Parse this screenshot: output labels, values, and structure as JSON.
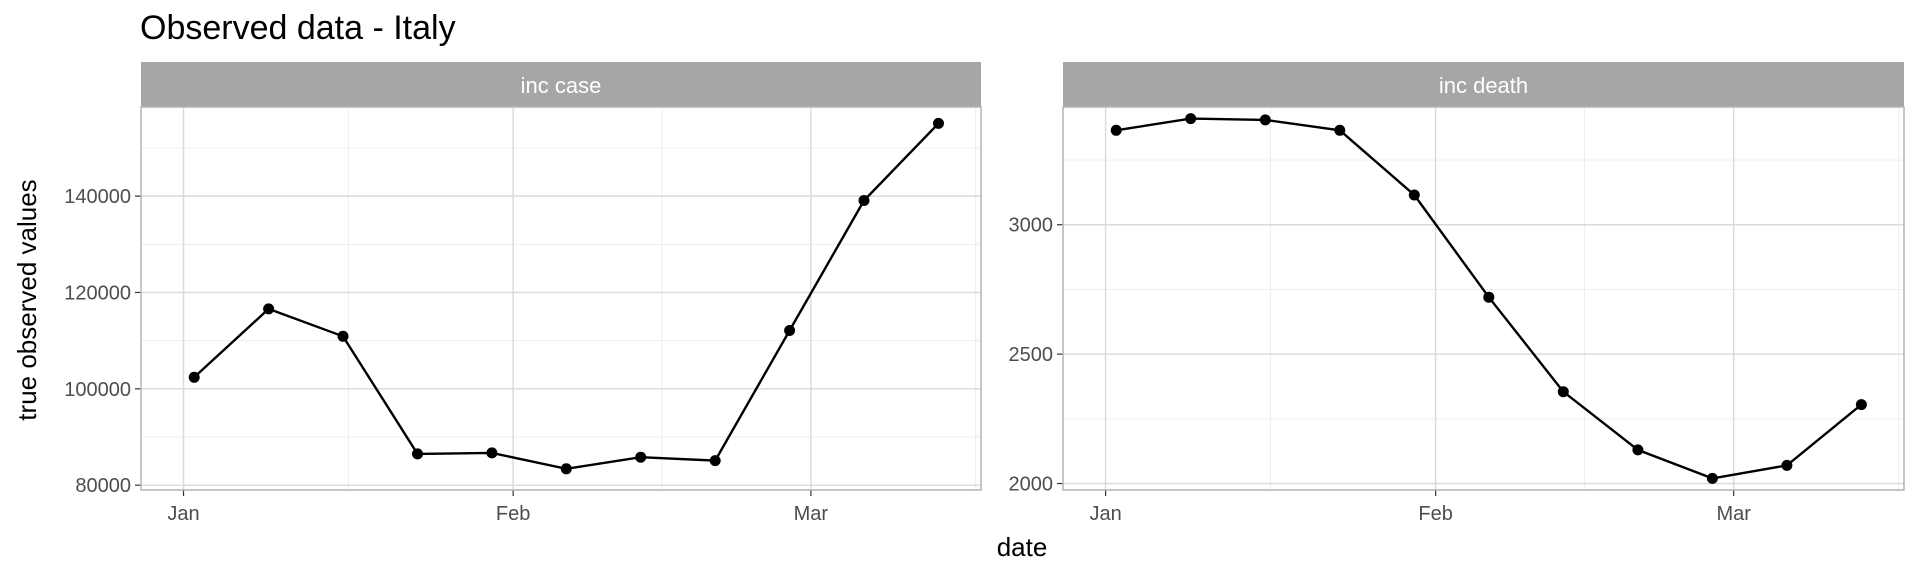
{
  "chart_data": {
    "type": "line",
    "title": "Observed data - Italy",
    "xlabel": "date",
    "ylabel": "true observed values",
    "grid": true,
    "x": [
      "2021-01-02",
      "2021-01-09",
      "2021-01-16",
      "2021-01-23",
      "2021-01-30",
      "2021-02-06",
      "2021-02-13",
      "2021-02-20",
      "2021-02-27",
      "2021-03-06",
      "2021-03-13"
    ],
    "xticks": [
      {
        "label": "Jan",
        "date": "2021-01-01"
      },
      {
        "label": "Feb",
        "date": "2021-02-01"
      },
      {
        "label": "Mar",
        "date": "2021-03-01"
      }
    ],
    "panels": [
      {
        "name": "inc case",
        "values": [
          102400,
          116600,
          110900,
          86500,
          86700,
          83400,
          85800,
          85100,
          112100,
          139100,
          155100
        ],
        "ylim": [
          79000,
          158500
        ],
        "yticks": [
          80000,
          100000,
          120000,
          140000
        ]
      },
      {
        "name": "inc death",
        "values": [
          3365,
          3410,
          3405,
          3365,
          3115,
          2720,
          2355,
          2130,
          2020,
          2070,
          2305
        ],
        "ylim": [
          1975,
          3455
        ],
        "yticks": [
          2000,
          2500,
          3000
        ]
      }
    ]
  }
}
